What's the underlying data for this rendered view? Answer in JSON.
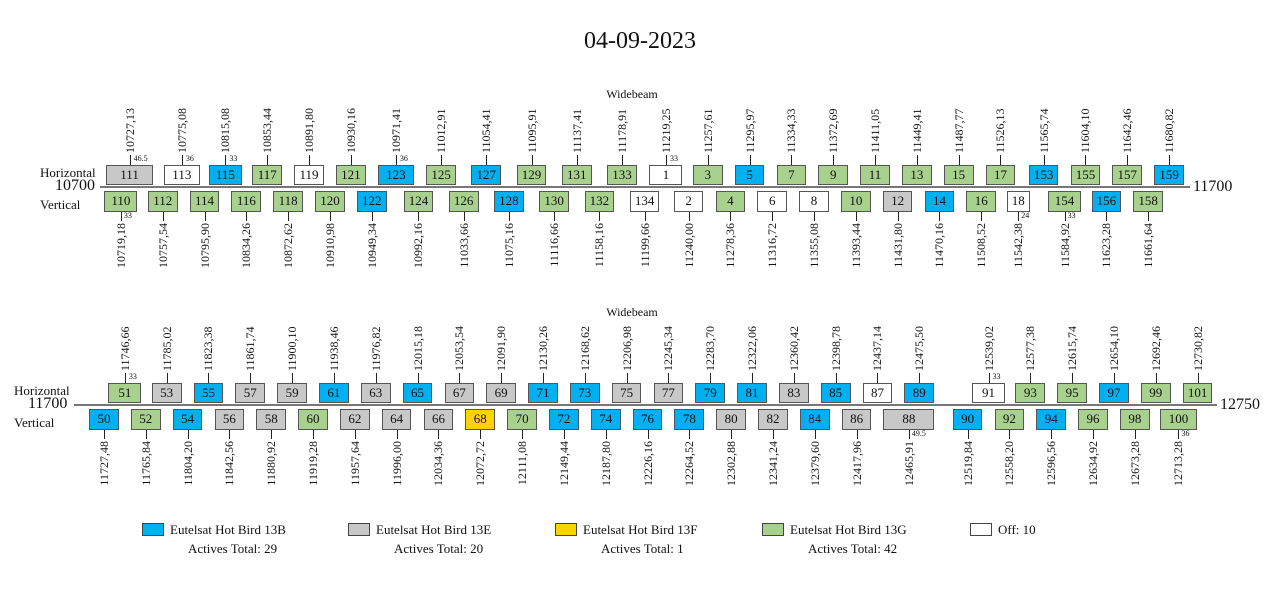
{
  "title": "04-09-2023",
  "colors": {
    "B": "#00b0f0",
    "E": "#c8c8c8",
    "F": "#ffd200",
    "G": "#a9d18e",
    "off": "#ffffff"
  },
  "rows": [
    {
      "beam": "Widebeam",
      "start_label": "10700",
      "end_label": "11700",
      "start": 10700,
      "h_label": "Horizontal",
      "v_label": "Vertical",
      "horizontal": [
        [
          "111",
          "10727,13",
          "E",
          "46.5"
        ],
        [
          "113",
          "10775,08",
          "off",
          "36"
        ],
        [
          "115",
          "10815,08",
          "B",
          "33"
        ],
        [
          "117",
          "10853,44",
          "G",
          ""
        ],
        [
          "119",
          "10891,80",
          "off",
          ""
        ],
        [
          "121",
          "10930,16",
          "G",
          ""
        ],
        [
          "123",
          "10971,41",
          "B",
          "36"
        ],
        [
          "125",
          "11012,91",
          "G",
          ""
        ],
        [
          "127",
          "11054,41",
          "B",
          ""
        ],
        [
          "129",
          "11095,91",
          "G",
          ""
        ],
        [
          "131",
          "11137,41",
          "G",
          ""
        ],
        [
          "133",
          "11178,91",
          "G",
          ""
        ],
        [
          "1",
          "11219,25",
          "off",
          "33"
        ],
        [
          "3",
          "11257,61",
          "G",
          ""
        ],
        [
          "5",
          "11295,97",
          "B",
          ""
        ],
        [
          "7",
          "11334,33",
          "G",
          ""
        ],
        [
          "9",
          "11372,69",
          "G",
          ""
        ],
        [
          "11",
          "11411,05",
          "G",
          ""
        ],
        [
          "13",
          "11449,41",
          "G",
          ""
        ],
        [
          "15",
          "11487,77",
          "G",
          ""
        ],
        [
          "17",
          "11526,13",
          "G",
          ""
        ],
        [
          "153",
          "11565,74",
          "B",
          ""
        ],
        [
          "155",
          "11604,10",
          "G",
          ""
        ],
        [
          "157",
          "11642,46",
          "G",
          ""
        ],
        [
          "159",
          "11680,82",
          "B",
          ""
        ]
      ],
      "vertical": [
        [
          "110",
          "10719,18",
          "G",
          "33"
        ],
        [
          "112",
          "10757,54",
          "G",
          ""
        ],
        [
          "114",
          "10795,90",
          "G",
          ""
        ],
        [
          "116",
          "10834,26",
          "G",
          ""
        ],
        [
          "118",
          "10872,62",
          "G",
          ""
        ],
        [
          "120",
          "10910,98",
          "G",
          ""
        ],
        [
          "122",
          "10949,34",
          "B",
          ""
        ],
        [
          "124",
          "10992,16",
          "G",
          ""
        ],
        [
          "126",
          "11033,66",
          "G",
          ""
        ],
        [
          "128",
          "11075,16",
          "B",
          ""
        ],
        [
          "130",
          "11116,66",
          "G",
          ""
        ],
        [
          "132",
          "11158,16",
          "G",
          ""
        ],
        [
          "134",
          "11199,66",
          "off",
          ""
        ],
        [
          "2",
          "11240,00",
          "off",
          ""
        ],
        [
          "4",
          "11278,36",
          "G",
          ""
        ],
        [
          "6",
          "11316,72",
          "off",
          ""
        ],
        [
          "8",
          "11355,08",
          "off",
          ""
        ],
        [
          "10",
          "11393,44",
          "G",
          ""
        ],
        [
          "12",
          "11431,80",
          "E",
          ""
        ],
        [
          "14",
          "11470,16",
          "B",
          ""
        ],
        [
          "16",
          "11508,52",
          "G",
          ""
        ],
        [
          "18",
          "11542,38",
          "off",
          "24"
        ],
        [
          "154",
          "11584,92",
          "G",
          "33"
        ],
        [
          "156",
          "11623,28",
          "B",
          ""
        ],
        [
          "158",
          "11661,64",
          "G",
          ""
        ]
      ]
    },
    {
      "beam": "Widebeam",
      "start_label": "11700",
      "end_label": "12750",
      "start": 11700,
      "h_label": "Horizontal",
      "v_label": "Vertical",
      "horizontal": [
        [
          "51",
          "11746,66",
          "G",
          "33"
        ],
        [
          "53",
          "11785,02",
          "E",
          ""
        ],
        [
          "55",
          "11823,38",
          "B",
          ""
        ],
        [
          "57",
          "11861,74",
          "E",
          ""
        ],
        [
          "59",
          "11900,10",
          "E",
          ""
        ],
        [
          "61",
          "11938,46",
          "B",
          ""
        ],
        [
          "63",
          "11976,82",
          "E",
          ""
        ],
        [
          "65",
          "12015,18",
          "B",
          ""
        ],
        [
          "67",
          "12053,54",
          "E",
          ""
        ],
        [
          "69",
          "12091,90",
          "E",
          ""
        ],
        [
          "71",
          "12130,26",
          "B",
          ""
        ],
        [
          "73",
          "12168,62",
          "B",
          ""
        ],
        [
          "75",
          "12206,98",
          "E",
          ""
        ],
        [
          "77",
          "12245,34",
          "E",
          ""
        ],
        [
          "79",
          "12283,70",
          "B",
          ""
        ],
        [
          "81",
          "12322,06",
          "B",
          ""
        ],
        [
          "83",
          "12360,42",
          "E",
          ""
        ],
        [
          "85",
          "12398,78",
          "B",
          ""
        ],
        [
          "87",
          "12437,14",
          "off",
          ""
        ],
        [
          "89",
          "12475,50",
          "B",
          ""
        ],
        [
          "91",
          "12539,02",
          "off",
          "33"
        ],
        [
          "93",
          "12577,38",
          "G",
          ""
        ],
        [
          "95",
          "12615,74",
          "G",
          ""
        ],
        [
          "97",
          "12654,10",
          "B",
          ""
        ],
        [
          "99",
          "12692,46",
          "G",
          ""
        ],
        [
          "101",
          "12730,82",
          "G",
          ""
        ]
      ],
      "vertical": [
        [
          "50",
          "11727,48",
          "B",
          ""
        ],
        [
          "52",
          "11765,84",
          "G",
          ""
        ],
        [
          "54",
          "11804,20",
          "B",
          ""
        ],
        [
          "56",
          "11842,56",
          "E",
          ""
        ],
        [
          "58",
          "11880,92",
          "E",
          ""
        ],
        [
          "60",
          "11919,28",
          "G",
          ""
        ],
        [
          "62",
          "11957,64",
          "E",
          ""
        ],
        [
          "64",
          "11996,00",
          "E",
          ""
        ],
        [
          "66",
          "12034,36",
          "E",
          ""
        ],
        [
          "68",
          "12072,72",
          "F",
          ""
        ],
        [
          "70",
          "12111,08",
          "G",
          ""
        ],
        [
          "72",
          "12149,44",
          "B",
          ""
        ],
        [
          "74",
          "12187,80",
          "B",
          ""
        ],
        [
          "76",
          "12226,16",
          "B",
          ""
        ],
        [
          "78",
          "12264,52",
          "B",
          ""
        ],
        [
          "80",
          "12302,88",
          "E",
          ""
        ],
        [
          "82",
          "12341,24",
          "E",
          ""
        ],
        [
          "84",
          "12379,60",
          "B",
          ""
        ],
        [
          "86",
          "12417,96",
          "E",
          ""
        ],
        [
          "88",
          "12465,91",
          "E",
          "49.5"
        ],
        [
          "90",
          "12519,84",
          "B",
          ""
        ],
        [
          "92",
          "12558,20",
          "G",
          ""
        ],
        [
          "94",
          "12596,56",
          "B",
          ""
        ],
        [
          "96",
          "12634,92",
          "G",
          ""
        ],
        [
          "98",
          "12673,28",
          "G",
          ""
        ],
        [
          "100",
          "12713,28",
          "G",
          "36"
        ]
      ]
    }
  ],
  "legend": [
    {
      "key": "B",
      "name": "Eutelsat Hot Bird 13B",
      "total": "Actives Total: 29"
    },
    {
      "key": "E",
      "name": "Eutelsat Hot Bird 13E",
      "total": "Actives Total: 20"
    },
    {
      "key": "F",
      "name": "Eutelsat Hot Bird 13F",
      "total": "Actives Total: 1"
    },
    {
      "key": "G",
      "name": "Eutelsat Hot Bird 13G",
      "total": "Actives Total: 42"
    },
    {
      "key": "off",
      "name": "Off: 10",
      "total": ""
    }
  ]
}
